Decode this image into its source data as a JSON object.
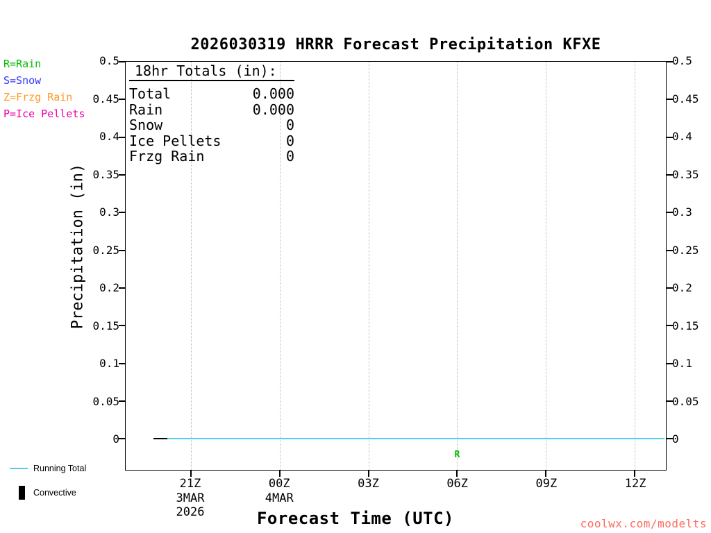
{
  "title": "2026030319 HRRR Forecast Precipitation KFXE",
  "type_legend": {
    "items": [
      {
        "label": "R=Rain",
        "color": "#00bb00"
      },
      {
        "label": "S=Snow",
        "color": "#3333ff"
      },
      {
        "label": "Z=Frzg Rain",
        "color": "#ff9922"
      },
      {
        "label": "P=Ice Pellets",
        "color": "#ee00aa"
      }
    ]
  },
  "totals_box": {
    "heading": "18hr Totals (in):",
    "rows": [
      {
        "label": "Total",
        "value": "0.000"
      },
      {
        "label": "Rain",
        "value": "0.000"
      },
      {
        "label": "Snow",
        "value": "0"
      },
      {
        "label": "Ice Pellets",
        "value": "0"
      },
      {
        "label": "Frzg Rain",
        "value": "0"
      }
    ]
  },
  "chart_data": {
    "type": "line",
    "title": "2026030319 HRRR Forecast Precipitation KFXE",
    "xlabel": "Forecast Time (UTC)",
    "ylabel": "Precipitation (in)",
    "ylim": [
      -0.041,
      0.5
    ],
    "yticks": [
      0,
      0.05,
      0.1,
      0.15,
      0.2,
      0.25,
      0.3,
      0.35,
      0.4,
      0.45,
      0.5
    ],
    "ytick_labels": [
      "0",
      "0.05",
      "0.1",
      "0.15",
      "0.2",
      "0.25",
      "0.3",
      "0.35",
      "0.4",
      "0.45",
      "0.5"
    ],
    "xlim_hours": [
      18.8,
      37.05
    ],
    "xticks": [
      {
        "hour": 21,
        "label": "21Z",
        "date": "3MAR",
        "year": "2026"
      },
      {
        "hour": 24,
        "label": "00Z",
        "date": "4MAR",
        "year": ""
      },
      {
        "hour": 27,
        "label": "03Z",
        "date": "",
        "year": ""
      },
      {
        "hour": 30,
        "label": "06Z",
        "date": "",
        "year": ""
      },
      {
        "hour": 33,
        "label": "09Z",
        "date": "",
        "year": ""
      },
      {
        "hour": 36,
        "label": "12Z",
        "date": "",
        "year": ""
      }
    ],
    "grid": "vertical-dotted",
    "series": [
      {
        "name": "Running Total",
        "color": "#55ccee",
        "x_hours": [
          19.8,
          37.0
        ],
        "values": [
          0.0,
          0.0
        ]
      }
    ],
    "annotations": [
      {
        "type": "segment",
        "from_hour": 19.75,
        "to_hour": 20.2,
        "value": 0.0,
        "color": "#000000"
      },
      {
        "type": "text",
        "label": "R",
        "hour": 30,
        "value": -0.012,
        "color": "#00bb00"
      }
    ]
  },
  "bottom_legend": {
    "items": [
      {
        "label": "Running Total",
        "swatch": "line",
        "color": "#55ccee"
      },
      {
        "label": "Convective",
        "swatch": "bar",
        "color": "#000000"
      }
    ]
  },
  "watermark": {
    "label": "coolwx.com/modelts",
    "color": "#ff6a5e"
  }
}
